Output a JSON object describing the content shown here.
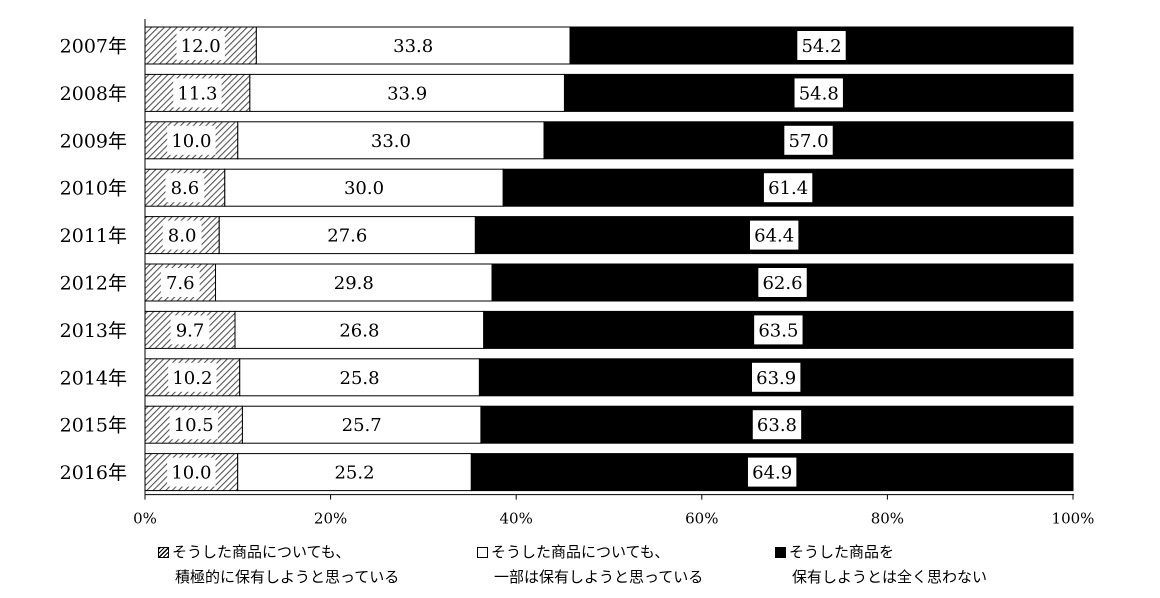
{
  "chart_data": {
    "type": "bar",
    "orientation": "horizontal",
    "stacked": "percent",
    "categories": [
      "2007年",
      "2008年",
      "2009年",
      "2010年",
      "2011年",
      "2012年",
      "2013年",
      "2014年",
      "2015年",
      "2016年"
    ],
    "series": [
      {
        "name": "そうした商品についても、積極的に保有しようと思っている",
        "legend_line1": "そうした商品についても、",
        "legend_line2": "積極的に保有しようと思っている",
        "fill": "hatch",
        "values": [
          12.0,
          11.3,
          10.0,
          8.6,
          8.0,
          7.6,
          9.7,
          10.2,
          10.5,
          10.0
        ],
        "labels": [
          "12.0",
          "11.3",
          "10.0",
          "8.6",
          "8.0",
          "7.6",
          "9.7",
          "10.2",
          "10.5",
          "10.0"
        ]
      },
      {
        "name": "そうした商品についても、一部は保有しようと思っている",
        "legend_line1": "そうした商品についても、",
        "legend_line2": "一部は保有しようと思っている",
        "fill": "#ffffff",
        "values": [
          33.8,
          33.9,
          33.0,
          30.0,
          27.6,
          29.8,
          26.8,
          25.8,
          25.7,
          25.2
        ],
        "labels": [
          "33.8",
          "33.9",
          "33.0",
          "30.0",
          "27.6",
          "29.8",
          "26.8",
          "25.8",
          "25.7",
          "25.2"
        ]
      },
      {
        "name": "そうした商品を保有しようとは全く思わない",
        "legend_line1": "そうした商品を",
        "legend_line2": "保有しようとは全く思わない",
        "fill": "#000000",
        "values": [
          54.2,
          54.8,
          57.0,
          61.4,
          64.4,
          62.6,
          63.5,
          63.9,
          63.8,
          64.9
        ],
        "labels": [
          "54.2",
          "54.8",
          "57.0",
          "61.4",
          "64.4",
          "62.6",
          "63.5",
          "63.9",
          "63.8",
          "64.9"
        ]
      }
    ],
    "x_ticks": [
      "0%",
      "20%",
      "40%",
      "60%",
      "80%",
      "100%"
    ],
    "xlim": [
      0,
      100
    ],
    "grid": false,
    "legend": "bottom"
  }
}
